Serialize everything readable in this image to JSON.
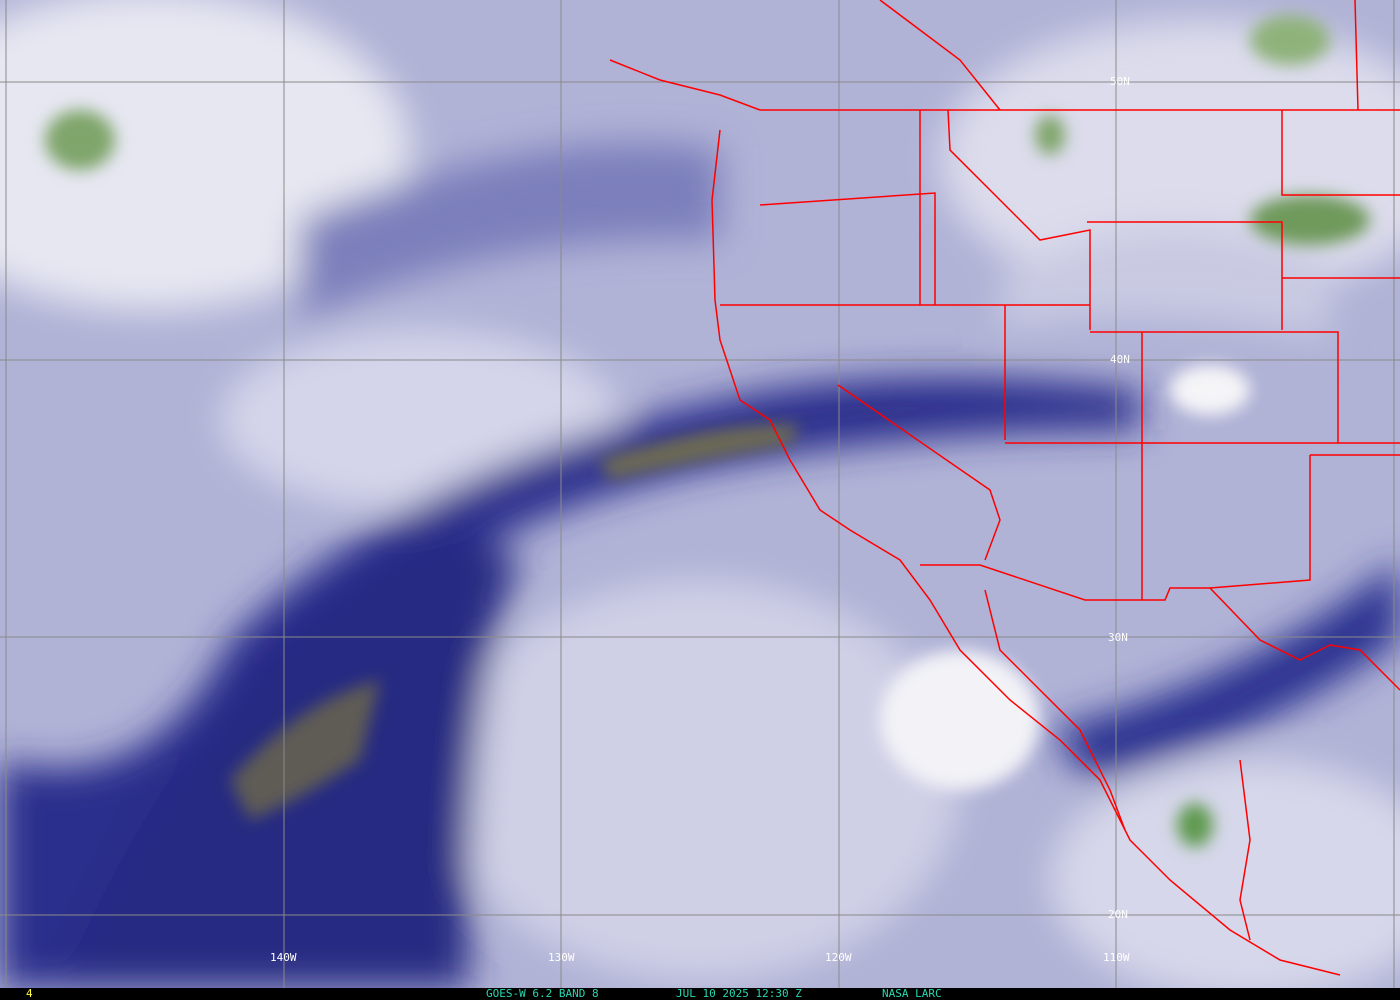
{
  "image": {
    "kind": "satellite water vapor imagery",
    "satellite": "GOES-W",
    "product": "6.2 BAND 8",
    "datetime": "JUL 10 2025 12:30 Z",
    "credit": "NASA LARC",
    "frame_number": "4"
  },
  "grid": {
    "longitude_labels": [
      "140W",
      "130W",
      "120W",
      "110W"
    ],
    "latitude_labels": [
      "50N",
      "40N",
      "30N",
      "20N"
    ]
  },
  "colors": {
    "border": "#ff0000",
    "grid": "#8a8a8a",
    "dry": "#1c1f7e",
    "moist": "#d8d9ea",
    "cloud": "#f4f4f8",
    "cold_cloud": "#6f9a5c",
    "very_dry": "#6d6a52",
    "footer_text": "#27d8b0",
    "frame_text": "#ffff40"
  }
}
